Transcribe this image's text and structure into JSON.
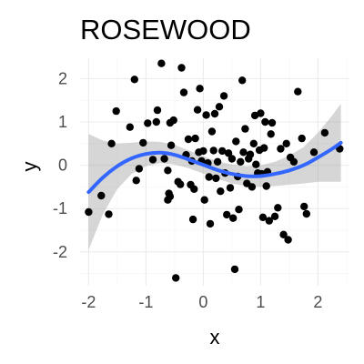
{
  "chart_data": {
    "type": "scatter",
    "title": "ROSEWOOD",
    "xlabel": "x",
    "ylabel": "y",
    "xlim": [
      -2.15,
      2.55
    ],
    "ylim": [
      -2.78,
      2.47
    ],
    "x_ticks": [
      -2,
      -1,
      0,
      1,
      2
    ],
    "y_ticks": [
      -2,
      -1,
      0,
      1,
      2
    ],
    "x_tick_labels": [
      "-2",
      "-1",
      "0",
      "1",
      "2"
    ],
    "y_tick_labels": [
      "-2",
      "-1",
      "0",
      "1",
      "2"
    ],
    "grid": true,
    "legend": "none",
    "point_color": "#000000",
    "smooth_color": "#3366ff",
    "band_color": "#999999",
    "points": [
      {
        "x": -2.0,
        "y": -1.08
      },
      {
        "x": -1.78,
        "y": -0.7
      },
      {
        "x": -1.65,
        "y": -1.13
      },
      {
        "x": -1.6,
        "y": 0.5
      },
      {
        "x": -1.52,
        "y": 1.25
      },
      {
        "x": -1.28,
        "y": 0.88
      },
      {
        "x": -1.2,
        "y": 1.98
      },
      {
        "x": -1.17,
        "y": -0.35
      },
      {
        "x": -1.12,
        "y": -0.08
      },
      {
        "x": -1.05,
        "y": 0.52
      },
      {
        "x": -0.97,
        "y": 0.97
      },
      {
        "x": -0.88,
        "y": 0.13
      },
      {
        "x": -0.82,
        "y": 1.0
      },
      {
        "x": -0.8,
        "y": 1.27
      },
      {
        "x": -0.73,
        "y": 2.35
      },
      {
        "x": -0.68,
        "y": 0.15
      },
      {
        "x": -0.62,
        "y": -0.12
      },
      {
        "x": -0.58,
        "y": 0.98
      },
      {
        "x": -0.56,
        "y": 0.46
      },
      {
        "x": -0.52,
        "y": 1.04
      },
      {
        "x": -0.48,
        "y": -2.6
      },
      {
        "x": -0.44,
        "y": -0.38
      },
      {
        "x": -0.4,
        "y": -0.44
      },
      {
        "x": -0.38,
        "y": 2.25
      },
      {
        "x": -0.34,
        "y": 1.68
      },
      {
        "x": -0.3,
        "y": 0.24
      },
      {
        "x": -0.26,
        "y": 0.6
      },
      {
        "x": -0.22,
        "y": -0.45
      },
      {
        "x": -0.2,
        "y": 0.1
      },
      {
        "x": -0.18,
        "y": -1.25
      },
      {
        "x": -0.16,
        "y": -0.55
      },
      {
        "x": -0.14,
        "y": 0.62
      },
      {
        "x": -0.1,
        "y": 1.28
      },
      {
        "x": -0.08,
        "y": 0.3
      },
      {
        "x": -0.06,
        "y": 1.77
      },
      {
        "x": -0.03,
        "y": 0.1
      },
      {
        "x": 0.0,
        "y": 0.33
      },
      {
        "x": 0.02,
        "y": -0.8
      },
      {
        "x": 0.05,
        "y": 1.16
      },
      {
        "x": 0.08,
        "y": 0.05
      },
      {
        "x": 0.1,
        "y": -0.27
      },
      {
        "x": 0.12,
        "y": -1.35
      },
      {
        "x": 0.15,
        "y": 0.78
      },
      {
        "x": 0.18,
        "y": 0.34
      },
      {
        "x": 0.2,
        "y": 1.19
      },
      {
        "x": 0.22,
        "y": -0.3
      },
      {
        "x": 0.25,
        "y": 0.08
      },
      {
        "x": 0.28,
        "y": 1.35
      },
      {
        "x": 0.3,
        "y": -0.6
      },
      {
        "x": 0.33,
        "y": 0.33
      },
      {
        "x": 0.36,
        "y": 1.6
      },
      {
        "x": 0.38,
        "y": -0.18
      },
      {
        "x": 0.41,
        "y": -1.14
      },
      {
        "x": 0.44,
        "y": 0.28
      },
      {
        "x": 0.47,
        "y": -0.52
      },
      {
        "x": 0.5,
        "y": 0.15
      },
      {
        "x": 0.52,
        "y": -1.22
      },
      {
        "x": 0.55,
        "y": -2.4
      },
      {
        "x": 0.57,
        "y": 0.55
      },
      {
        "x": 0.6,
        "y": -0.26
      },
      {
        "x": 0.62,
        "y": -1.02
      },
      {
        "x": 0.65,
        "y": 0.08
      },
      {
        "x": 0.68,
        "y": 1.96
      },
      {
        "x": 0.7,
        "y": 0.3
      },
      {
        "x": 0.73,
        "y": 0.84
      },
      {
        "x": 0.76,
        "y": -0.42
      },
      {
        "x": 0.79,
        "y": 0.15
      },
      {
        "x": 0.82,
        "y": 0.25
      },
      {
        "x": 0.85,
        "y": -0.5
      },
      {
        "x": 0.88,
        "y": 0.5
      },
      {
        "x": 0.9,
        "y": 1.15
      },
      {
        "x": 0.92,
        "y": 0.02
      },
      {
        "x": 0.95,
        "y": -0.18
      },
      {
        "x": 0.98,
        "y": 0.35
      },
      {
        "x": 1.0,
        "y": 1.2
      },
      {
        "x": 1.02,
        "y": -0.2
      },
      {
        "x": 1.04,
        "y": -1.2
      },
      {
        "x": 1.06,
        "y": 0.4
      },
      {
        "x": 1.08,
        "y": 1.0
      },
      {
        "x": 1.1,
        "y": -0.48
      },
      {
        "x": 1.12,
        "y": -0.15
      },
      {
        "x": 1.15,
        "y": -1.28
      },
      {
        "x": 1.18,
        "y": 0.72
      },
      {
        "x": 1.2,
        "y": 0.98
      },
      {
        "x": 1.25,
        "y": -1.18
      },
      {
        "x": 1.3,
        "y": -0.98
      },
      {
        "x": 1.35,
        "y": 0.38
      },
      {
        "x": 1.4,
        "y": -1.6
      },
      {
        "x": 1.45,
        "y": 0.5
      },
      {
        "x": 1.48,
        "y": -1.72
      },
      {
        "x": 1.52,
        "y": 0.18
      },
      {
        "x": 1.58,
        "y": 0.08
      },
      {
        "x": 1.65,
        "y": 1.7
      },
      {
        "x": 1.72,
        "y": 0.62
      },
      {
        "x": 1.76,
        "y": -0.95
      },
      {
        "x": 1.8,
        "y": -1.12
      },
      {
        "x": 1.93,
        "y": 0.3
      },
      {
        "x": 2.12,
        "y": 0.75
      },
      {
        "x": 2.38,
        "y": 0.38
      },
      {
        "x": -0.62,
        "y": -0.8
      },
      {
        "x": -0.6,
        "y": -0.65
      },
      {
        "x": -0.58,
        "y": -0.72
      }
    ],
    "smooth": [
      {
        "x": -2.0,
        "y": -0.62,
        "lo": -1.95,
        "hi": 0.72
      },
      {
        "x": -1.75,
        "y": -0.28,
        "lo": -1.12,
        "hi": 0.57
      },
      {
        "x": -1.5,
        "y": -0.02,
        "lo": -0.55,
        "hi": 0.5
      },
      {
        "x": -1.25,
        "y": 0.16,
        "lo": -0.2,
        "hi": 0.52
      },
      {
        "x": -1.0,
        "y": 0.26,
        "lo": -0.02,
        "hi": 0.55
      },
      {
        "x": -0.75,
        "y": 0.29,
        "lo": 0.05,
        "hi": 0.54
      },
      {
        "x": -0.5,
        "y": 0.24,
        "lo": 0.02,
        "hi": 0.47
      },
      {
        "x": -0.25,
        "y": 0.13,
        "lo": -0.07,
        "hi": 0.34
      },
      {
        "x": 0.0,
        "y": 0.01,
        "lo": -0.19,
        "hi": 0.21
      },
      {
        "x": 0.25,
        "y": -0.11,
        "lo": -0.31,
        "hi": 0.09
      },
      {
        "x": 0.5,
        "y": -0.2,
        "lo": -0.42,
        "hi": 0.02
      },
      {
        "x": 0.75,
        "y": -0.25,
        "lo": -0.48,
        "hi": -0.02
      },
      {
        "x": 1.0,
        "y": -0.25,
        "lo": -0.5,
        "hi": 0.0
      },
      {
        "x": 1.25,
        "y": -0.2,
        "lo": -0.48,
        "hi": 0.08
      },
      {
        "x": 1.5,
        "y": -0.12,
        "lo": -0.45,
        "hi": 0.22
      },
      {
        "x": 1.75,
        "y": 0.0,
        "lo": -0.42,
        "hi": 0.42
      },
      {
        "x": 2.0,
        "y": 0.18,
        "lo": -0.38,
        "hi": 0.75
      },
      {
        "x": 2.25,
        "y": 0.38,
        "lo": -0.38,
        "hi": 1.15
      },
      {
        "x": 2.4,
        "y": 0.52,
        "lo": -0.38,
        "hi": 1.42
      }
    ]
  }
}
